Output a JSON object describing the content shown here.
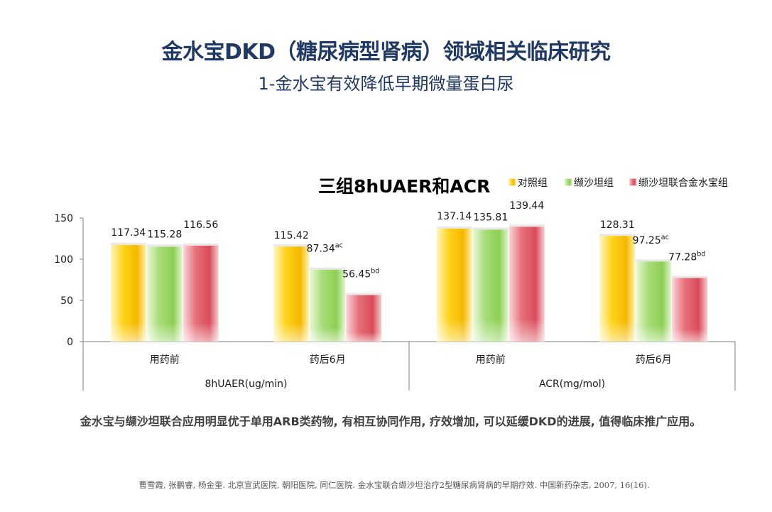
{
  "slide": {
    "title": "金水宝DKD（糖尿病型肾病）领域相关临床研究",
    "subtitle": "1-金水宝有效降低早期微量蛋白尿",
    "conclusion": "金水宝与缬沙坦联合应用明显优于单用ARB类药物, 有相互协同作用, 疗效增加, 可以延缓DKD的进展, 值得临床推广应用。",
    "reference": "曹雪霞, 张鹏睿, 杨金奎. 北京宣武医院, 朝阳医院, 同仁医院. 金水宝联合缬沙坦治疗2型糖尿病肾病的早期疗效. 中国新药杂志, 2007, 16(16)."
  },
  "chart_data": {
    "type": "bar",
    "title": "三组8hUAER和ACR",
    "ylim": [
      0,
      150
    ],
    "yticks": [
      0,
      50,
      100,
      150
    ],
    "grid": false,
    "legend_position": "top-right",
    "series": [
      {
        "name": "对照组",
        "color": "#f5c400"
      },
      {
        "name": "缬沙坦组",
        "color": "#92d050"
      },
      {
        "name": "缬沙坦联合金水宝组",
        "color": "#e05a66"
      }
    ],
    "groups": [
      {
        "label": "8hUAER(ug/min)",
        "categories": [
          {
            "label": "用药前",
            "values": [
              117.34,
              115.28,
              116.56
            ],
            "labels": [
              "117.34",
              "115.28",
              "116.56"
            ],
            "sups": [
              "",
              "",
              ""
            ]
          },
          {
            "label": "药后6月",
            "values": [
              115.42,
              87.34,
              56.45
            ],
            "labels": [
              "115.42",
              "87.34",
              "56.45"
            ],
            "sups": [
              "",
              "ac",
              "bd"
            ]
          }
        ]
      },
      {
        "label": "ACR(mg/mol)",
        "categories": [
          {
            "label": "用药前",
            "values": [
              137.14,
              135.81,
              139.44
            ],
            "labels": [
              "137.14",
              "135.81",
              "139.44"
            ],
            "sups": [
              "",
              "",
              ""
            ]
          },
          {
            "label": "药后6月",
            "values": [
              128.31,
              97.25,
              77.28
            ],
            "labels": [
              "128.31",
              "97.25",
              "77.28"
            ],
            "sups": [
              "",
              "ac",
              "bd"
            ]
          }
        ]
      }
    ]
  }
}
